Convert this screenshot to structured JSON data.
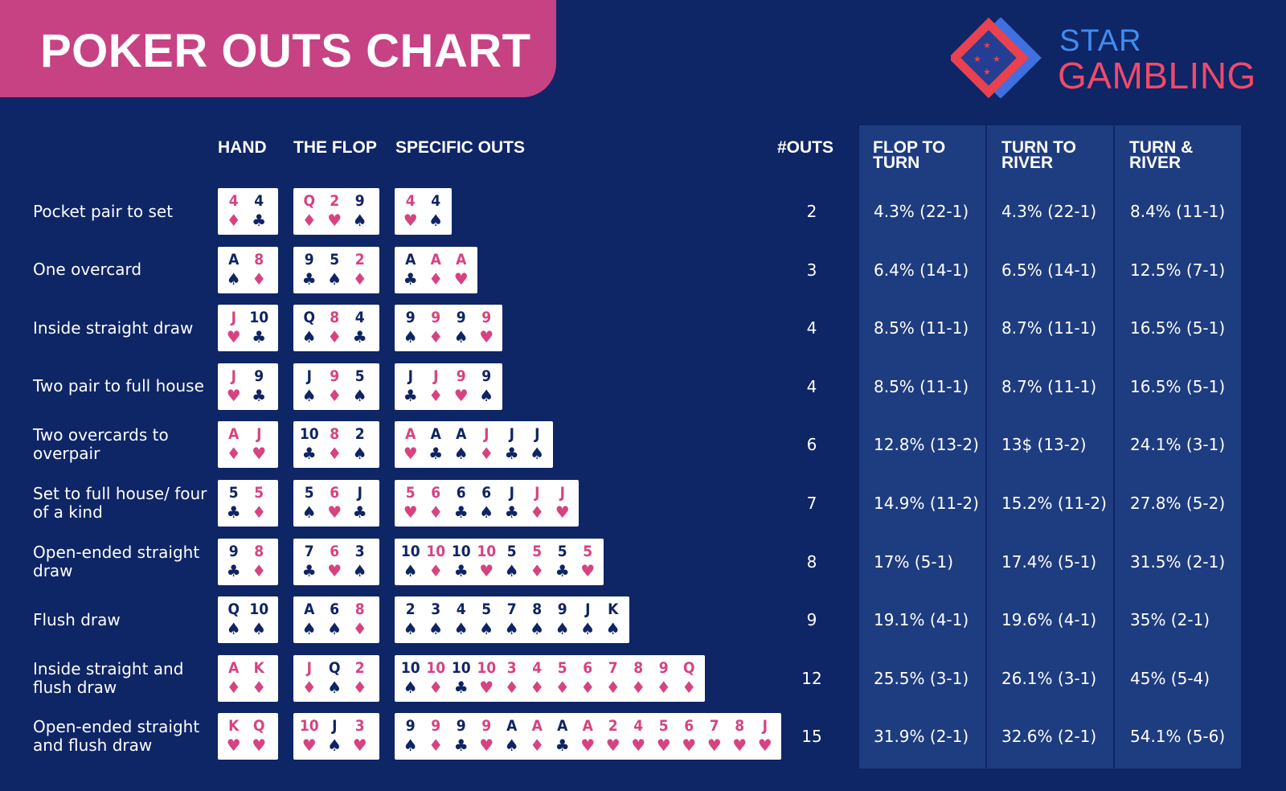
{
  "title": "POKER OUTS CHART",
  "logo": {
    "line1": "STAR",
    "line2": "GAMBLING"
  },
  "headers": {
    "hand": "HAND",
    "flop": "THE FLOP",
    "specific_outs": "SPECIFIC OUTS",
    "outs": "#OUTS",
    "flop_to_turn": "FLOP TO TURN",
    "turn_to_river": "TURN TO RIVER",
    "turn_and_river": "TURN & RIVER"
  },
  "rows": [
    {
      "label": "Pocket pair to set",
      "hand": [
        {
          "r": "4",
          "s": "diamond"
        },
        {
          "r": "4",
          "s": "club"
        }
      ],
      "flop": [
        {
          "r": "Q",
          "s": "diamond"
        },
        {
          "r": "2",
          "s": "heart"
        },
        {
          "r": "9",
          "s": "spade"
        }
      ],
      "outs_cards": [
        {
          "r": "4",
          "s": "heart"
        },
        {
          "r": "4",
          "s": "spade"
        }
      ],
      "outs": "2",
      "flop_to_turn": "4.3% (22-1)",
      "turn_to_river": "4.3% (22-1)",
      "turn_and_river": "8.4% (11-1)"
    },
    {
      "label": "One overcard",
      "hand": [
        {
          "r": "A",
          "s": "spade"
        },
        {
          "r": "8",
          "s": "diamond"
        }
      ],
      "flop": [
        {
          "r": "9",
          "s": "club"
        },
        {
          "r": "5",
          "s": "spade"
        },
        {
          "r": "2",
          "s": "diamond"
        }
      ],
      "outs_cards": [
        {
          "r": "A",
          "s": "club"
        },
        {
          "r": "A",
          "s": "diamond"
        },
        {
          "r": "A",
          "s": "heart"
        }
      ],
      "outs": "3",
      "flop_to_turn": "6.4% (14-1)",
      "turn_to_river": "6.5% (14-1)",
      "turn_and_river": "12.5% (7-1)"
    },
    {
      "label": "Inside straight draw",
      "hand": [
        {
          "r": "J",
          "s": "heart"
        },
        {
          "r": "10",
          "s": "club"
        }
      ],
      "flop": [
        {
          "r": "Q",
          "s": "spade"
        },
        {
          "r": "8",
          "s": "diamond"
        },
        {
          "r": "4",
          "s": "club"
        }
      ],
      "outs_cards": [
        {
          "r": "9",
          "s": "spade"
        },
        {
          "r": "9",
          "s": "diamond"
        },
        {
          "r": "9",
          "s": "spade"
        },
        {
          "r": "9",
          "s": "heart"
        }
      ],
      "outs": "4",
      "flop_to_turn": "8.5% (11-1)",
      "turn_to_river": "8.7% (11-1)",
      "turn_and_river": "16.5% (5-1)"
    },
    {
      "label": "Two pair to full house",
      "hand": [
        {
          "r": "J",
          "s": "heart"
        },
        {
          "r": "9",
          "s": "club"
        }
      ],
      "flop": [
        {
          "r": "J",
          "s": "spade"
        },
        {
          "r": "9",
          "s": "diamond"
        },
        {
          "r": "5",
          "s": "spade"
        }
      ],
      "outs_cards": [
        {
          "r": "J",
          "s": "club"
        },
        {
          "r": "J",
          "s": "diamond"
        },
        {
          "r": "9",
          "s": "heart"
        },
        {
          "r": "9",
          "s": "spade"
        }
      ],
      "outs": "4",
      "flop_to_turn": "8.5% (11-1)",
      "turn_to_river": "8.7% (11-1)",
      "turn_and_river": "16.5% (5-1)"
    },
    {
      "label": "Two overcards to overpair",
      "hand": [
        {
          "r": "A",
          "s": "diamond"
        },
        {
          "r": "J",
          "s": "heart"
        }
      ],
      "flop": [
        {
          "r": "10",
          "s": "club"
        },
        {
          "r": "8",
          "s": "diamond"
        },
        {
          "r": "2",
          "s": "spade"
        }
      ],
      "outs_cards": [
        {
          "r": "A",
          "s": "heart"
        },
        {
          "r": "A",
          "s": "club"
        },
        {
          "r": "A",
          "s": "spade"
        },
        {
          "r": "J",
          "s": "diamond"
        },
        {
          "r": "J",
          "s": "club"
        },
        {
          "r": "J",
          "s": "spade"
        }
      ],
      "outs": "6",
      "flop_to_turn": "12.8% (13-2)",
      "turn_to_river": "13$ (13-2)",
      "turn_and_river": "24.1% (3-1)"
    },
    {
      "label": "Set to full house/ four of a kind",
      "hand": [
        {
          "r": "5",
          "s": "club"
        },
        {
          "r": "5",
          "s": "diamond"
        }
      ],
      "flop": [
        {
          "r": "5",
          "s": "spade"
        },
        {
          "r": "6",
          "s": "heart"
        },
        {
          "r": "J",
          "s": "club"
        }
      ],
      "outs_cards": [
        {
          "r": "5",
          "s": "heart"
        },
        {
          "r": "6",
          "s": "diamond"
        },
        {
          "r": "6",
          "s": "club"
        },
        {
          "r": "6",
          "s": "spade"
        },
        {
          "r": "J",
          "s": "club"
        },
        {
          "r": "J",
          "s": "diamond"
        },
        {
          "r": "J",
          "s": "heart"
        }
      ],
      "outs": "7",
      "flop_to_turn": "14.9% (11-2)",
      "turn_to_river": "15.2% (11-2)",
      "turn_and_river": "27.8% (5-2)"
    },
    {
      "label": "Open-ended straight draw",
      "hand": [
        {
          "r": "9",
          "s": "club"
        },
        {
          "r": "8",
          "s": "diamond"
        }
      ],
      "flop": [
        {
          "r": "7",
          "s": "club"
        },
        {
          "r": "6",
          "s": "heart"
        },
        {
          "r": "3",
          "s": "spade"
        }
      ],
      "outs_cards": [
        {
          "r": "10",
          "s": "spade"
        },
        {
          "r": "10",
          "s": "diamond"
        },
        {
          "r": "10",
          "s": "club"
        },
        {
          "r": "10",
          "s": "heart"
        },
        {
          "r": "5",
          "s": "spade"
        },
        {
          "r": "5",
          "s": "diamond"
        },
        {
          "r": "5",
          "s": "club"
        },
        {
          "r": "5",
          "s": "heart"
        }
      ],
      "outs": "8",
      "flop_to_turn": "17% (5-1)",
      "turn_to_river": "17.4% (5-1)",
      "turn_and_river": "31.5% (2-1)"
    },
    {
      "label": "Flush draw",
      "hand": [
        {
          "r": "Q",
          "s": "spade"
        },
        {
          "r": "10",
          "s": "spade"
        }
      ],
      "flop": [
        {
          "r": "A",
          "s": "spade"
        },
        {
          "r": "6",
          "s": "spade"
        },
        {
          "r": "8",
          "s": "diamond"
        }
      ],
      "outs_cards": [
        {
          "r": "2",
          "s": "spade"
        },
        {
          "r": "3",
          "s": "spade"
        },
        {
          "r": "4",
          "s": "spade"
        },
        {
          "r": "5",
          "s": "spade"
        },
        {
          "r": "7",
          "s": "spade"
        },
        {
          "r": "8",
          "s": "spade"
        },
        {
          "r": "9",
          "s": "spade"
        },
        {
          "r": "J",
          "s": "spade"
        },
        {
          "r": "K",
          "s": "spade"
        }
      ],
      "outs": "9",
      "flop_to_turn": "19.1% (4-1)",
      "turn_to_river": "19.6% (4-1)",
      "turn_and_river": "35% (2-1)"
    },
    {
      "label": "Inside straight and flush draw",
      "hand": [
        {
          "r": "A",
          "s": "diamond"
        },
        {
          "r": "K",
          "s": "diamond"
        }
      ],
      "flop": [
        {
          "r": "J",
          "s": "diamond"
        },
        {
          "r": "Q",
          "s": "spade"
        },
        {
          "r": "2",
          "s": "diamond"
        }
      ],
      "outs_cards": [
        {
          "r": "10",
          "s": "spade"
        },
        {
          "r": "10",
          "s": "diamond"
        },
        {
          "r": "10",
          "s": "club"
        },
        {
          "r": "10",
          "s": "heart"
        },
        {
          "r": "3",
          "s": "diamond"
        },
        {
          "r": "4",
          "s": "diamond"
        },
        {
          "r": "5",
          "s": "diamond"
        },
        {
          "r": "6",
          "s": "diamond"
        },
        {
          "r": "7",
          "s": "diamond"
        },
        {
          "r": "8",
          "s": "diamond"
        },
        {
          "r": "9",
          "s": "diamond"
        },
        {
          "r": "Q",
          "s": "diamond"
        }
      ],
      "outs": "12",
      "flop_to_turn": "25.5% (3-1)",
      "turn_to_river": "26.1% (3-1)",
      "turn_and_river": "45% (5-4)"
    },
    {
      "label": "Open-ended straight and flush draw",
      "hand": [
        {
          "r": "K",
          "s": "heart"
        },
        {
          "r": "Q",
          "s": "heart"
        }
      ],
      "flop": [
        {
          "r": "10",
          "s": "heart"
        },
        {
          "r": "J",
          "s": "spade"
        },
        {
          "r": "3",
          "s": "heart"
        }
      ],
      "outs_cards": [
        {
          "r": "9",
          "s": "spade"
        },
        {
          "r": "9",
          "s": "diamond"
        },
        {
          "r": "9",
          "s": "club"
        },
        {
          "r": "9",
          "s": "heart"
        },
        {
          "r": "A",
          "s": "spade"
        },
        {
          "r": "A",
          "s": "diamond"
        },
        {
          "r": "A",
          "s": "club"
        },
        {
          "r": "A",
          "s": "heart"
        },
        {
          "r": "2",
          "s": "heart"
        },
        {
          "r": "4",
          "s": "heart"
        },
        {
          "r": "5",
          "s": "heart"
        },
        {
          "r": "6",
          "s": "heart"
        },
        {
          "r": "7",
          "s": "heart"
        },
        {
          "r": "8",
          "s": "heart"
        },
        {
          "r": "J",
          "s": "heart"
        }
      ],
      "outs": "15",
      "flop_to_turn": "31.9% (2-1)",
      "turn_to_river": "32.6% (2-1)",
      "turn_and_river": "54.1% (5-6)"
    }
  ],
  "colors": {
    "background": "#0e2566",
    "banner": "#c74283",
    "column_shade": "#1e3c80",
    "red_suit": "#d64380",
    "black_suit": "#0f2463"
  }
}
